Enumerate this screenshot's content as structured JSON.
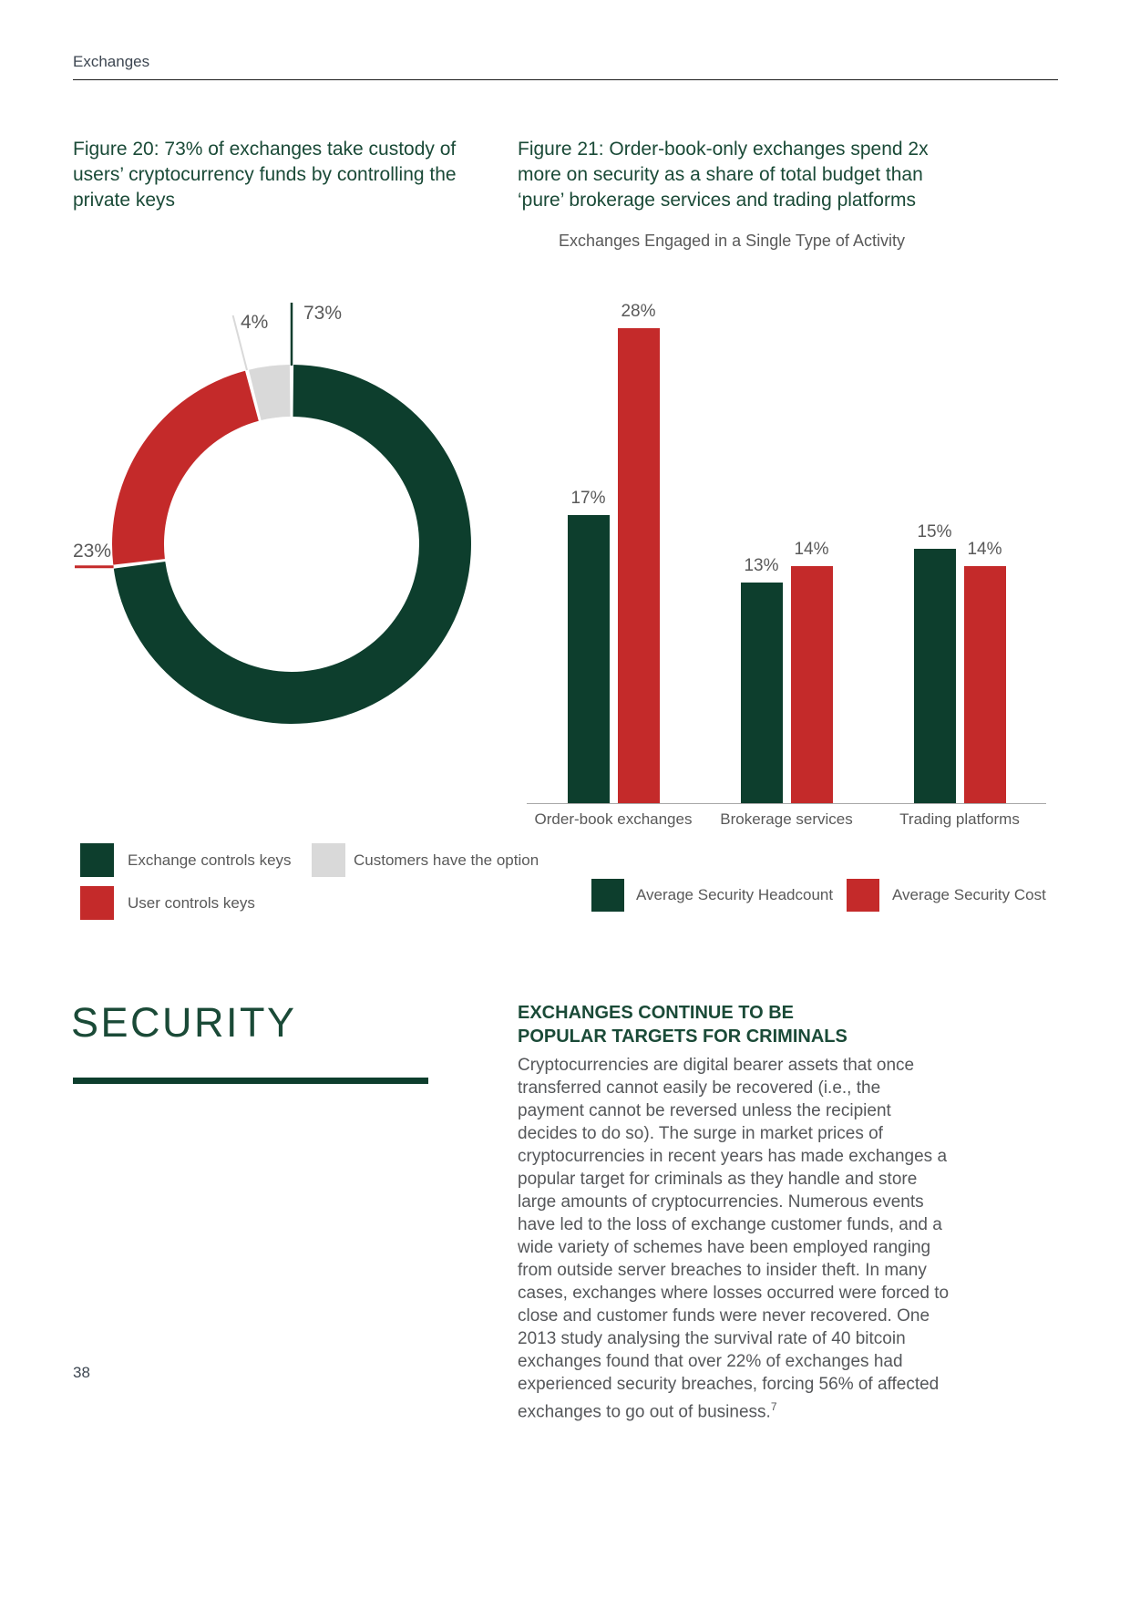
{
  "page": {
    "header": "Exchanges",
    "page_number": "38"
  },
  "colors": {
    "dark_green": "#0d3e2d",
    "red": "#c42a2a",
    "light_gray": "#d9d9d9",
    "title_green": "#1a4a37",
    "label_gray": "#595959",
    "axis_gray": "#a8a8a8"
  },
  "figure20": {
    "title": "Figure 20: 73% of exchanges take custody of users’ cryptocurrency funds by controlling the private keys",
    "chart_data": {
      "type": "pie",
      "donut": true,
      "start_angle_deg": 0,
      "direction": "clockwise",
      "segments": [
        {
          "label": "Exchange controls keys",
          "value": 73,
          "pct_label": "73%",
          "color": "#0d3e2d"
        },
        {
          "label": "User controls keys",
          "value": 23,
          "pct_label": "23%",
          "color": "#c42a2a"
        },
        {
          "label": "Customers have the option",
          "value": 4,
          "pct_label": "4%",
          "color": "#d9d9d9"
        }
      ]
    }
  },
  "figure21": {
    "title": "Figure 21: Order-book-only exchanges spend 2x more on security as a share of total budget than ‘pure’ brokerage services and trading platforms",
    "subtitle": "Exchanges Engaged in a Single Type of Activity",
    "chart_data": {
      "type": "bar",
      "categories": [
        "Order-book exchanges",
        "Brokerage services",
        "Trading platforms"
      ],
      "series": [
        {
          "name": "Average Security Headcount",
          "color": "#0d3e2d",
          "values": [
            17,
            13,
            15
          ]
        },
        {
          "name": "Average Security Cost",
          "color": "#c42a2a",
          "values": [
            28,
            14,
            14
          ]
        }
      ],
      "unit": "%",
      "ylim": [
        0,
        30
      ],
      "grid": false,
      "legend_position": "bottom"
    }
  },
  "security": {
    "heading": "SECURITY",
    "subheading_line1": "EXCHANGES CONTINUE TO BE",
    "subheading_line2": "POPULAR TARGETS FOR CRIMINALS",
    "body": "Cryptocurrencies are digital bearer assets that once transferred cannot easily be recovered (i.e., the payment cannot be reversed unless the recipient decides to do so). The surge in market prices of cryptocurrencies in recent years has made exchanges a popular target for criminals as they handle and store large amounts of cryptocurrencies. Numerous events have led to the loss of exchange customer funds, and a wide variety of schemes have been employed ranging from outside server breaches to insider theft. In many cases, exchanges where losses occurred were forced to close and customer funds were never recovered. One 2013 study analysing the survival rate of 40 bitcoin exchanges found that over 22% of exchanges had experienced security breaches, forcing 56% of affected exchanges to go out of business.",
    "footnote_marker": "7"
  }
}
